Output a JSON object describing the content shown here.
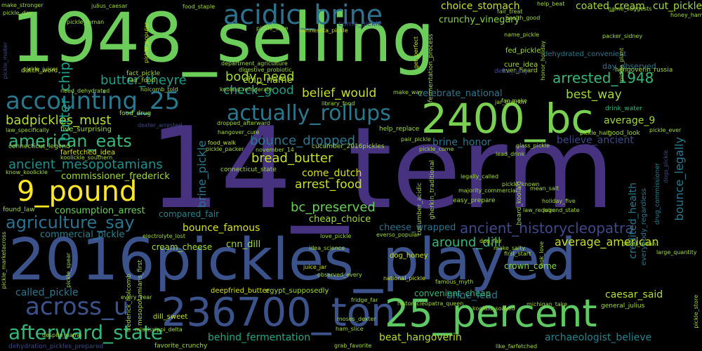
{
  "words": [
    {
      "text": "1948_selling",
      "color": "#6ccd5a"
    },
    {
      "text": "14_term",
      "color": "#46327e"
    },
    {
      "text": "2016pickles_played",
      "color": "#3b528b"
    },
    {
      "text": "236700_ton",
      "color": "#3b528b"
    },
    {
      "text": "25_percent",
      "color": "#5ec962"
    },
    {
      "text": "2400_bc",
      "color": "#7ad151"
    },
    {
      "text": "acidic_brine",
      "color": "#2c728e"
    },
    {
      "text": "accounting_25",
      "color": "#2a788e"
    },
    {
      "text": "actually_rollups",
      "color": "#2a788e"
    },
    {
      "text": "across_u",
      "color": "#3b528b"
    },
    {
      "text": "afterward_state",
      "color": "#35b779"
    },
    {
      "text": "9_pound",
      "color": "#fde725"
    },
    {
      "text": "american_eats",
      "color": "#35b779"
    },
    {
      "text": "agriculture_say",
      "color": "#2c728e"
    },
    {
      "text": "ancient_historycleopatra",
      "color": "#3e4989"
    },
    {
      "text": "arrested_1948",
      "color": "#35b779"
    },
    {
      "text": "badpickles_must",
      "color": "#b5de2b"
    },
    {
      "text": "ancient_mesopotamians",
      "color": "#21918c"
    },
    {
      "text": "butter_theyre",
      "color": "#1f9e89"
    },
    {
      "text": "butter_chip",
      "color": "#1f9e89"
    },
    {
      "text": "check_good",
      "color": "#1f9e89"
    },
    {
      "text": "body_need",
      "color": "#a0da39"
    },
    {
      "text": "chip_name",
      "color": "#b5de2b"
    },
    {
      "text": "belief_would",
      "color": "#c8e020"
    },
    {
      "text": "bounce_dropped",
      "color": "#2a788e"
    },
    {
      "text": "bread_butter",
      "color": "#c8e020"
    },
    {
      "text": "come_dutch",
      "color": "#d8e219"
    },
    {
      "text": "arrest_food",
      "color": "#c8e020"
    },
    {
      "text": "bc_preserved",
      "color": "#6ccd5a"
    },
    {
      "text": "bounce_famous",
      "color": "#d8e219"
    },
    {
      "text": "average_american",
      "color": "#c8e020"
    },
    {
      "text": "around_dill",
      "color": "#35b779"
    },
    {
      "text": "best_way",
      "color": "#a0da39"
    },
    {
      "text": "average_9",
      "color": "#a0da39"
    },
    {
      "text": "believe_ancient",
      "color": "#3e4989"
    },
    {
      "text": "brine_honor",
      "color": "#2a788e"
    },
    {
      "text": "brine_lead",
      "color": "#2a788e"
    },
    {
      "text": "celebrate_national",
      "color": "#2a788e"
    },
    {
      "text": "called_pickle",
      "color": "#2a788e"
    },
    {
      "text": "behind_fermentation",
      "color": "#22a884"
    },
    {
      "text": "beat_hangoverin",
      "color": "#b5de2b"
    },
    {
      "text": "archaeologist_believe",
      "color": "#26828e"
    },
    {
      "text": "caesar_said",
      "color": "#b5de2b"
    },
    {
      "text": "cheap_choice",
      "color": "#a0da39"
    },
    {
      "text": "commissioner_frederick",
      "color": "#a0da39"
    },
    {
      "text": "consumption_arrest",
      "color": "#6ccd5a"
    },
    {
      "text": "commercial_pickle",
      "color": "#26828e"
    },
    {
      "text": "compared_fair",
      "color": "#26828e"
    },
    {
      "text": "cream_cheese",
      "color": "#a0da39"
    },
    {
      "text": "cnn_dill",
      "color": "#a0da39"
    },
    {
      "text": "crunchy_vinegary",
      "color": "#86d549"
    },
    {
      "text": "choice_stomach",
      "color": "#c8e020"
    },
    {
      "text": "coated_cream",
      "color": "#a0da39"
    },
    {
      "text": "cut_pickle",
      "color": "#a0da39"
    },
    {
      "text": "brine_pickle",
      "color": "#2a788e"
    },
    {
      "text": "bounce_legally",
      "color": "#2a788e"
    },
    {
      "text": "credited_health",
      "color": "#2a788e"
    },
    {
      "text": "cheese_wrapped",
      "color": "#2c728e"
    },
    {
      "text": "crown_come",
      "color": "#86d549"
    },
    {
      "text": "convenient_cheap",
      "color": "#35b779"
    },
    {
      "text": "connecticut_legend",
      "color": "#a0da39"
    },
    {
      "text": "five_surprising",
      "color": "#a0da39"
    },
    {
      "text": "food_drug",
      "color": "#a0da39"
    },
    {
      "text": "fact_pickle",
      "color": "#a0da39"
    },
    {
      "text": "fair_food",
      "color": "#a0da39"
    },
    {
      "text": "fed_pickle",
      "color": "#a0da39"
    },
    {
      "text": "cure_idea",
      "color": "#a0da39"
    },
    {
      "text": "ever_heard",
      "color": "#a0da39"
    },
    {
      "text": "day_observed",
      "color": "#2a788e"
    },
    {
      "text": "dehydrated_convenient",
      "color": "#2a788e"
    },
    {
      "text": "deepfried_butter",
      "color": "#d8e219"
    },
    {
      "text": "egypt_supposedly",
      "color": "#a0da39"
    },
    {
      "text": "dill_sweet",
      "color": "#c8e020"
    },
    {
      "text": "dog_honey",
      "color": "#c8e020"
    },
    {
      "text": "drink_water",
      "color": "#35b779"
    },
    {
      "text": "good_look",
      "color": "#a0da39"
    },
    {
      "text": "farfetched_idea",
      "color": "#d8e219"
    },
    {
      "text": "drug_commissioner",
      "color": "#2a788e"
    },
    {
      "text": "everybody_regardless",
      "color": "#2a788e"
    },
    {
      "text": "general_julius",
      "color": "#a0da39"
    },
    {
      "text": "dogs_pickle",
      "color": "#3e4989"
    },
    {
      "text": "cucumber_2016pickles",
      "color": "#a0da39"
    },
    {
      "text": "help_replace",
      "color": "#a0da39"
    },
    {
      "text": "connecticut_state",
      "color": "#a0da39"
    },
    {
      "text": "electrolyte_lost",
      "color": "#a0da39"
    },
    {
      "text": "first_start",
      "color": "#a0da39"
    },
    {
      "text": "dog_fair",
      "color": "#c8e020"
    },
    {
      "text": "national_pickle",
      "color": "#c8e020"
    },
    {
      "text": "fridge_far",
      "color": "#a0da39"
    },
    {
      "text": "famous_myth",
      "color": "#a0da39"
    },
    {
      "text": "every_year",
      "color": "#a0da39"
    },
    {
      "text": "hangoverin_russia",
      "color": "#a0da39"
    },
    {
      "text": "help_beat",
      "color": "#a0da39"
    },
    {
      "text": "fair_treat",
      "color": "#a0da39"
    },
    {
      "text": "food_staple",
      "color": "#a0da39"
    },
    {
      "text": "julius_caesar",
      "color": "#a0da39"
    },
    {
      "text": "pickle_roman",
      "color": "#a0da39"
    },
    {
      "text": "make_stronger",
      "color": "#a0da39"
    },
    {
      "text": "pickle_day",
      "color": "#a0da39"
    },
    {
      "text": "honor_holiday",
      "color": "#a0da39"
    },
    {
      "text": "minnesota_pickle",
      "color": "#c8e020"
    },
    {
      "text": "hangover_cure",
      "color": "#a0da39"
    },
    {
      "text": "dropped_afterward",
      "color": "#a0da39"
    },
    {
      "text": "food_walk",
      "color": "#c8e020"
    },
    {
      "text": "pickle_packer",
      "color": "#a0da39"
    },
    {
      "text": "koolickle_southern",
      "color": "#a0da39"
    },
    {
      "text": "dexter_arrested",
      "color": "#3e4989"
    },
    {
      "text": "law_specifically",
      "color": "#a0da39"
    },
    {
      "text": "know_koolickle",
      "color": "#a0da39"
    },
    {
      "text": "found_law",
      "color": "#a0da39"
    },
    {
      "text": "dutch_word",
      "color": "#c8e020"
    },
    {
      "text": "need_dehydrated",
      "color": "#a0da39"
    },
    {
      "text": "holcomb_told",
      "color": "#a0da39"
    },
    {
      "text": "koolaid_refrigerate",
      "color": "#a0da39"
    },
    {
      "text": "digestive_probiotic",
      "color": "#a0da39"
    },
    {
      "text": "department_agriculture",
      "color": "#a0da39"
    },
    {
      "text": "come_pickle",
      "color": "#3e4989"
    },
    {
      "text": "make_way",
      "color": "#a0da39"
    },
    {
      "text": "library_food",
      "color": "#a0da39"
    },
    {
      "text": "jar_gherkin",
      "color": "#a0da39"
    },
    {
      "text": "law_require",
      "color": "#a0da39"
    },
    {
      "text": "mean_salt",
      "color": "#a0da39"
    },
    {
      "text": "majority_commercial",
      "color": "#a0da39"
    },
    {
      "text": "easy_prepare",
      "color": "#a0da39"
    },
    {
      "text": "pickle_known",
      "color": "#a0da39"
    },
    {
      "text": "lead_drink",
      "color": "#a0da39"
    },
    {
      "text": "glass_pickle",
      "color": "#a0da39"
    },
    {
      "text": "legally_called",
      "color": "#a0da39"
    },
    {
      "text": "juice_jar",
      "color": "#c8e020"
    },
    {
      "text": "observed_every",
      "color": "#a0da39"
    },
    {
      "text": "idea_science",
      "color": "#a0da39"
    },
    {
      "text": "make_salty",
      "color": "#a0da39"
    },
    {
      "text": "ham_slice",
      "color": "#a0da39"
    },
    {
      "text": "moses_dexter",
      "color": "#a0da39"
    },
    {
      "text": "despite_name",
      "color": "#a0da39"
    },
    {
      "text": "dehydration_pickles_prepared",
      "color": "#3e4989"
    },
    {
      "text": "favorite_crunchy",
      "color": "#a0da39"
    },
    {
      "text": "grab_favorite",
      "color": "#a0da39"
    },
    {
      "text": "like_farfetched",
      "color": "#a0da39"
    },
    {
      "text": "mississippi_delta",
      "color": "#a0da39"
    },
    {
      "text": "historycleopatra_queen",
      "color": "#a0da39"
    },
    {
      "text": "koolaid_soaked",
      "color": "#a0da39"
    },
    {
      "text": "michigan_take",
      "color": "#a0da39"
    },
    {
      "text": "look_love",
      "color": "#a0da39"
    },
    {
      "text": "name_suggests",
      "color": "#a0da39"
    },
    {
      "text": "honey_ham",
      "color": "#a0da39"
    },
    {
      "text": "packer_sidney",
      "color": "#a0da39"
    },
    {
      "text": "pickle_ever",
      "color": "#a0da39"
    },
    {
      "text": "love_pickle",
      "color": "#a0da39"
    },
    {
      "text": "everso_popular",
      "color": "#a0da39"
    },
    {
      "text": "delta_easy",
      "color": "#3e4989"
    },
    {
      "text": "far_make",
      "color": "#a0da39"
    },
    {
      "text": "fermentation_process",
      "color": "#a0da39"
    },
    {
      "text": "get_perfect",
      "color": "#c8e020"
    },
    {
      "text": "pickle_popular",
      "color": "#c8e020"
    },
    {
      "text": "name_pickle",
      "color": "#a0da39"
    },
    {
      "text": "pickle_slice",
      "color": "#a0da39"
    },
    {
      "text": "pickle_juice",
      "color": "#a0da39"
    },
    {
      "text": "pickle_plant",
      "color": "#a0da39"
    },
    {
      "text": "cucumber_acidic",
      "color": "#a0da39"
    },
    {
      "text": "gherkin_traditional",
      "color": "#a0da39"
    },
    {
      "text": "heard_koolaid",
      "color": "#a0da39"
    },
    {
      "text": "holiday_five",
      "color": "#a0da39"
    },
    {
      "text": "legend_state",
      "color": "#a0da39"
    },
    {
      "text": "november_14",
      "color": "#a0da39"
    },
    {
      "text": "pair_pickle",
      "color": "#a0da39"
    },
    {
      "text": "pickle_come",
      "color": "#a0da39"
    },
    {
      "text": "pickle_half",
      "color": "#a0da39"
    },
    {
      "text": "pickle_spear",
      "color": "#a0da39"
    },
    {
      "text": "pickle_marketacross",
      "color": "#a0da39"
    },
    {
      "text": "frederick_holcomb",
      "color": "#a0da39"
    },
    {
      "text": "mesopotamians_first",
      "color": "#a0da39"
    },
    {
      "text": "pickle_maker",
      "color": "#3e4989"
    },
    {
      "text": "health_good",
      "color": "#a0da39"
    },
    {
      "text": "pickle_store",
      "color": "#a0da39"
    },
    {
      "text": "large_quantity",
      "color": "#a0da39"
    },
    {
      "text": "pekel_mean",
      "color": "#a0da39"
    }
  ]
}
